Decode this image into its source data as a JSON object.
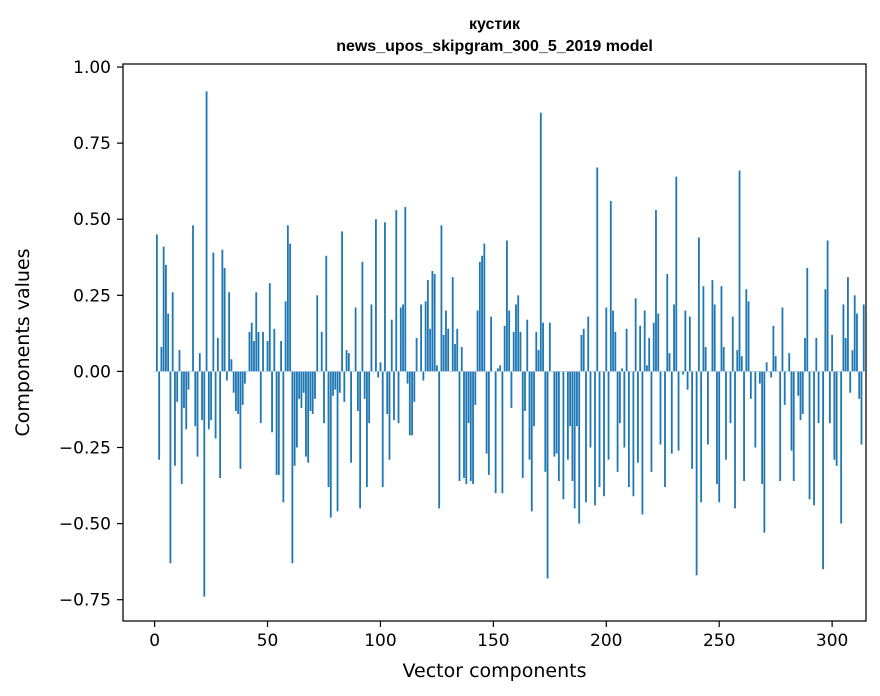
{
  "chart_data": {
    "type": "bar",
    "title_line1": "кустик",
    "title_line2": "news_upos_skipgram_300_5_2019 model",
    "xlabel": "Vector components",
    "ylabel": "Components values",
    "xlim": [
      -14,
      315
    ],
    "ylim": [
      -0.82,
      1.01
    ],
    "xticks": [
      0,
      50,
      100,
      150,
      200,
      250,
      300
    ],
    "xtick_labels": [
      "0",
      "50",
      "100",
      "150",
      "200",
      "250",
      "300"
    ],
    "yticks": [
      -0.75,
      -0.5,
      -0.25,
      0.0,
      0.25,
      0.5,
      0.75,
      1.0
    ],
    "ytick_labels": [
      "−0.75",
      "−0.50",
      "−0.25",
      "0.00",
      "0.25",
      "0.50",
      "0.75",
      "1.00"
    ],
    "color": "#1f77b4",
    "bar_width": 0.8,
    "values": [
      0.0,
      0.45,
      -0.29,
      0.08,
      0.41,
      0.35,
      0.19,
      -0.63,
      0.26,
      -0.31,
      -0.1,
      0.07,
      -0.37,
      -0.12,
      -0.19,
      -0.06,
      0.0,
      0.48,
      -0.18,
      -0.28,
      0.06,
      -0.16,
      -0.74,
      0.92,
      -0.19,
      -0.16,
      0.39,
      -0.22,
      0.11,
      -0.35,
      0.4,
      0.34,
      -0.03,
      0.26,
      0.04,
      -0.07,
      -0.13,
      -0.14,
      -0.32,
      -0.11,
      -0.04,
      0.0,
      0.13,
      0.16,
      0.1,
      0.26,
      0.13,
      -0.17,
      0.13,
      0.0,
      0.1,
      0.29,
      -0.2,
      0.14,
      -0.34,
      -0.34,
      0.1,
      -0.43,
      0.23,
      0.48,
      0.42,
      -0.63,
      -0.31,
      -0.25,
      -0.09,
      -0.12,
      -0.07,
      -0.28,
      -0.3,
      -0.13,
      -0.14,
      -0.09,
      0.25,
      0.0,
      0.13,
      -0.17,
      0.38,
      -0.38,
      -0.48,
      -0.08,
      -0.06,
      -0.46,
      -0.07,
      0.46,
      -0.1,
      0.07,
      0.06,
      -0.3,
      0.0,
      0.21,
      -0.13,
      -0.45,
      0.36,
      -0.09,
      -0.38,
      -0.17,
      0.22,
      0.0,
      0.5,
      -0.02,
      0.03,
      -0.38,
      0.49,
      -0.14,
      -0.29,
      0.17,
      -0.16,
      0.53,
      -0.17,
      0.21,
      0.22,
      0.54,
      -0.04,
      -0.21,
      -0.21,
      -0.1,
      0.11,
      0.0,
      0.22,
      -0.03,
      0.23,
      0.3,
      0.14,
      0.33,
      0.32,
      0.02,
      -0.45,
      0.48,
      0.12,
      0.2,
      0.14,
      0.0,
      0.31,
      0.09,
      0.14,
      -0.36,
      0.08,
      -0.35,
      -0.37,
      -0.17,
      -0.36,
      -0.37,
      -0.11,
      0.2,
      0.36,
      0.38,
      0.42,
      -0.27,
      -0.34,
      0.18,
      0.0,
      -0.4,
      0.01,
      0.02,
      -0.4,
      0.15,
      0.43,
      0.2,
      -0.12,
      0.13,
      0.22,
      0.25,
      0.13,
      -0.35,
      -0.13,
      0.17,
      -0.29,
      -0.46,
      -0.18,
      0.13,
      0.07,
      0.85,
      0.16,
      -0.33,
      -0.68,
      0.16,
      0.0,
      -0.28,
      -0.27,
      -0.36,
      0.0,
      -0.42,
      0.0,
      -0.29,
      -0.18,
      -0.36,
      -0.45,
      -0.18,
      -0.5,
      0.12,
      0.14,
      -0.43,
      0.18,
      -0.25,
      0.0,
      -0.44,
      0.67,
      -0.38,
      0.0,
      -0.41,
      0.21,
      -0.29,
      0.56,
      0.2,
      0.13,
      -0.33,
      -0.17,
      0.01,
      -0.25,
      0.14,
      -0.38,
      0.0,
      -0.41,
      0.24,
      -0.3,
      0.15,
      -0.47,
      0.2,
      0.02,
      0.11,
      -0.33,
      0.16,
      0.53,
      0.19,
      -0.24,
      0.0,
      -0.38,
      0.32,
      0.06,
      -0.27,
      0.22,
      0.64,
      -0.26,
      0.0,
      -0.01,
      0.2,
      -0.06,
      0.18,
      -0.32,
      0.0,
      -0.67,
      0.44,
      -0.43,
      0.28,
      0.08,
      -0.24,
      0.0,
      0.3,
      0.22,
      -0.37,
      -0.43,
      0.28,
      0.08,
      -0.29,
      0.0,
      -0.17,
      0.18,
      -0.45,
      0.07,
      0.66,
      0.05,
      -0.36,
      0.27,
      0.23,
      -0.09,
      0.0,
      -0.25,
      0.0,
      -0.04,
      -0.37,
      -0.53,
      0.03,
      0.0,
      -0.02,
      0.15,
      0.05,
      0.0,
      -0.36,
      0.21,
      -0.11,
      0.0,
      0.06,
      -0.26,
      -0.36,
      0.0,
      -0.08,
      -0.16,
      -0.14,
      0.11,
      0.34,
      -0.42,
      0.0,
      -0.44,
      0.11,
      -0.17,
      0.0,
      -0.65,
      0.27,
      0.43,
      -0.17,
      0.12,
      -0.29,
      -0.31,
      0.0,
      -0.5,
      0.22,
      0.11,
      0.31,
      -0.07,
      0.07,
      0.25,
      0.19,
      -0.09,
      -0.24,
      0.22
    ]
  }
}
